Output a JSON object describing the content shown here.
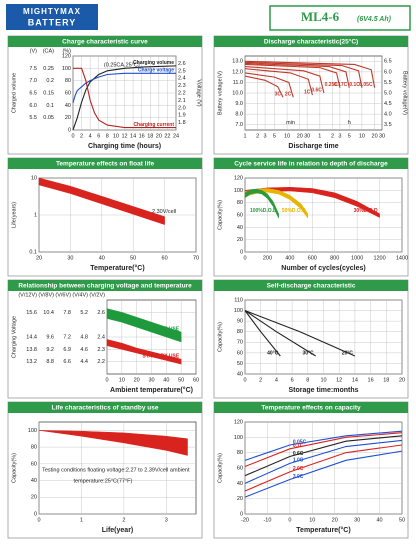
{
  "header": {
    "brand_line1": "MIGHTYMAX",
    "brand_line2": "BATTERY",
    "model": "ML4-6",
    "spec": "(6V4.5 Ah)"
  },
  "chart_data": [
    {
      "type": "line",
      "title": "Charge characteristic curve",
      "xlabel": "Charging time  (hours)",
      "ylabel": "Charged volume",
      "yunit": "(%)",
      "grid": true,
      "xlim": [
        0,
        24
      ],
      "xticks": [
        0,
        2,
        4,
        6,
        8,
        10,
        12,
        14,
        16,
        18,
        20,
        22,
        24
      ],
      "ylim": [
        0,
        120
      ],
      "yticks": [
        0,
        20,
        40,
        60,
        80,
        100,
        120
      ],
      "extra_axes": [
        {
          "label": "(CA)",
          "side": "left",
          "lim": [
            0,
            0.3
          ],
          "ticks": [
            0.05,
            0.1,
            0.15,
            0.2,
            0.25
          ]
        },
        {
          "label": "(V)",
          "side": "left",
          "lim": [
            5,
            8
          ],
          "ticks": [
            5.5,
            {
              "value": 6,
              "label": "6.0"
            },
            6.5,
            {
              "value": 7,
              "label": "7.0"
            },
            7.5
          ]
        },
        {
          "label": "Voltage (V)",
          "side": "right",
          "lim": [
            1.7,
            2.7
          ],
          "ticks": [
            1.8,
            1.9,
            {
              "value": 2,
              "label": "2.0"
            },
            2.1,
            2.2,
            2.3,
            2.4,
            2.5,
            2.6
          ]
        }
      ],
      "series": [
        {
          "name": "Charging volume",
          "color": "#222222",
          "x": [
            0,
            1,
            2,
            3,
            4,
            6,
            8,
            12,
            16,
            20,
            24
          ],
          "values": [
            0,
            20,
            45,
            65,
            78,
            90,
            96,
            100,
            102,
            103,
            104
          ]
        },
        {
          "name": "Charge voltage",
          "color": "#1f4fd0",
          "axis": 1,
          "x": [
            0,
            0.5,
            1,
            2,
            3,
            4,
            6,
            8,
            12,
            16,
            24
          ],
          "values": [
            6.1,
            6.4,
            6.6,
            6.75,
            6.9,
            7.0,
            7.15,
            7.25,
            7.3,
            7.3,
            7.3
          ]
        },
        {
          "name": "Charging current",
          "color": "#b5231f",
          "axis": 0,
          "x": [
            0,
            2,
            3,
            4,
            5,
            6,
            8,
            12,
            16,
            24
          ],
          "values": [
            0.25,
            0.25,
            0.2,
            0.12,
            0.07,
            0.04,
            0.02,
            0.01,
            0.01,
            0.01
          ]
        }
      ],
      "annotations": [
        "(0.25CA,25°C)"
      ]
    },
    {
      "type": "line",
      "title": "Discharge characteristic(25°C)",
      "xlabel": "Discharge time",
      "ylabel": "Battery voltage(V)",
      "grid": true,
      "xlog": true,
      "xlim": [
        1,
        1800
      ],
      "xticks": [
        1,
        2,
        3,
        5,
        10,
        20,
        30,
        {
          "value": 60,
          "label": "1"
        },
        {
          "value": 120,
          "label": "2"
        },
        {
          "value": 180,
          "label": "3"
        },
        {
          "value": 300,
          "label": "5"
        },
        {
          "value": 600,
          "label": "10"
        },
        {
          "value": 1200,
          "label": "20"
        },
        {
          "value": 1800,
          "label": "30"
        }
      ],
      "ylim": [
        6.5,
        13.5
      ],
      "yticks": [
        {
          "value": 7,
          "label": "7.0"
        },
        {
          "value": 8,
          "label": "8.0"
        },
        {
          "value": 9,
          "label": "9.0"
        },
        {
          "value": 10,
          "label": "10.0"
        },
        {
          "value": 11,
          "label": "11.0"
        },
        {
          "value": 12,
          "label": "12.0"
        },
        {
          "value": 13,
          "label": "13.0"
        }
      ],
      "extra_axes": [
        {
          "label": "Battery voltage(V)",
          "side": "right",
          "lim": [
            3.25,
            6.75
          ],
          "ticks": [
            3.5,
            {
              "value": 4,
              "label": "4.0"
            },
            4.5,
            {
              "value": 5,
              "label": "5.0"
            },
            5.5,
            {
              "value": 6,
              "label": "6.0"
            },
            6.5
          ]
        }
      ],
      "series": [
        {
          "name": "3C",
          "color": "#c0392b",
          "x": [
            1,
            3,
            6,
            8
          ],
          "values": [
            11.6,
            11.2,
            10.6,
            9.6
          ]
        },
        {
          "name": "2C",
          "color": "#c0392b",
          "x": [
            1,
            5,
            11,
            14
          ],
          "values": [
            11.9,
            11.5,
            11.0,
            9.6
          ]
        },
        {
          "name": "1C",
          "color": "#c0392b",
          "x": [
            1,
            12,
            32,
            40
          ],
          "values": [
            12.3,
            11.9,
            11.3,
            9.8
          ]
        },
        {
          "name": "0.6C",
          "color": "#c0392b",
          "x": [
            1,
            25,
            60,
            75
          ],
          "values": [
            12.5,
            12.1,
            11.6,
            10.0
          ]
        },
        {
          "name": "0.25C",
          "color": "#c0392b",
          "x": [
            1,
            60,
            150,
            180
          ],
          "values": [
            12.7,
            12.4,
            11.9,
            10.5
          ]
        },
        {
          "name": "0.17C",
          "color": "#c0392b",
          "x": [
            1,
            100,
            250,
            300
          ],
          "values": [
            12.8,
            12.5,
            12.0,
            10.5
          ]
        },
        {
          "name": "0.1C",
          "color": "#c0392b",
          "x": [
            1,
            200,
            500,
            600
          ],
          "values": [
            12.9,
            12.6,
            12.1,
            10.5
          ]
        },
        {
          "name": "0.05C",
          "color": "#c0392b",
          "x": [
            1,
            400,
            1000,
            1200
          ],
          "values": [
            13.0,
            12.7,
            12.2,
            10.5
          ]
        }
      ],
      "annotations": [
        "min",
        "h"
      ]
    },
    {
      "type": "band",
      "title": "Temperature effects on float life",
      "xlabel": "Temperature(°C)",
      "ylabel": "Life(years)",
      "grid": true,
      "ylog": true,
      "xlim": [
        20,
        70
      ],
      "xticks": [
        20,
        30,
        40,
        50,
        60,
        70
      ],
      "ylim": [
        0.1,
        10
      ],
      "yticks": [
        0.1,
        1,
        10
      ],
      "series": [
        {
          "color": "#d9231f",
          "x": [
            20,
            30,
            40,
            50,
            60
          ],
          "values": [
            10,
            6,
            3.2,
            1.7,
            0.9
          ],
          "low": [
            6.5,
            3.8,
            2,
            1.05,
            0.55
          ]
        }
      ],
      "annotations": [
        "2.30V/cell"
      ]
    },
    {
      "type": "band",
      "title": "Cycle service life in relation to depth of discharge",
      "xlabel": "Number of cycles(cycles)",
      "ylabel": "Capacity(%)",
      "grid": true,
      "xlim": [
        0,
        1400
      ],
      "xticks": [
        0,
        200,
        400,
        600,
        800,
        1000,
        1200,
        1400
      ],
      "ylim": [
        0,
        120
      ],
      "yticks": [
        0,
        20,
        40,
        60,
        80,
        100,
        120
      ],
      "series": [
        {
          "name": "30%D.O.D",
          "color": "#d9231f",
          "x": [
            0,
            200,
            400,
            600,
            800,
            1000,
            1200
          ],
          "values": [
            100,
            104,
            105,
            103,
            96,
            82,
            62
          ],
          "low": [
            92,
            98,
            99,
            96,
            88,
            74,
            56
          ]
        },
        {
          "name": "50%D.O.D",
          "color": "#e8b400",
          "x": [
            0,
            100,
            200,
            300,
            400,
            500,
            560
          ],
          "values": [
            98,
            102,
            103,
            100,
            92,
            78,
            62
          ],
          "low": [
            90,
            95,
            97,
            94,
            85,
            70,
            55
          ]
        },
        {
          "name": "100%D.O.D",
          "color": "#2a9a3a",
          "x": [
            0,
            50,
            100,
            150,
            200,
            250,
            300
          ],
          "values": [
            96,
            101,
            102,
            100,
            94,
            82,
            62
          ],
          "low": [
            88,
            94,
            96,
            94,
            87,
            74,
            55
          ]
        }
      ]
    },
    {
      "type": "band",
      "title": "Relationship between charging voltage and temperature",
      "xlabel": "Ambient temperature(°C)",
      "ylabel": "Charging Voltage",
      "yunit": "(V/2V)",
      "grid": true,
      "xlim": [
        0,
        60
      ],
      "xticks": [
        0,
        10,
        20,
        30,
        40,
        50,
        60
      ],
      "ylim": [
        2.1,
        2.7
      ],
      "yticks": [
        2.2,
        2.3,
        2.4,
        2.6
      ],
      "extra_axes": [
        {
          "label": "(V/4V)",
          "side": "left",
          "lim": [
            4.2,
            5.4
          ],
          "ticks": [
            4.4,
            4.6,
            4.8,
            5.2
          ]
        },
        {
          "label": "(V/6V)",
          "side": "left",
          "lim": [
            6.3,
            8.1
          ],
          "ticks": [
            6.6,
            6.9,
            7.2,
            7.8
          ]
        },
        {
          "label": "(V/8V)",
          "side": "left",
          "lim": [
            8.4,
            10.8
          ],
          "ticks": [
            8.8,
            9.2,
            9.6,
            10.4
          ]
        },
        {
          "label": "(V/12V)",
          "side": "left",
          "lim": [
            12.6,
            16.2
          ],
          "ticks": [
            13.2,
            13.8,
            14.4,
            15.6
          ]
        }
      ],
      "series": [
        {
          "name": "CYCLE USE",
          "color": "#1e9a3c",
          "x": [
            0,
            10,
            20,
            30,
            40,
            50
          ],
          "values": [
            2.63,
            2.6,
            2.56,
            2.52,
            2.48,
            2.44
          ],
          "low": [
            2.55,
            2.52,
            2.48,
            2.44,
            2.4,
            2.36
          ]
        },
        {
          "name": "STAND BY USE",
          "color": "#d9231f",
          "x": [
            0,
            10,
            20,
            30,
            40,
            50
          ],
          "values": [
            2.38,
            2.35,
            2.31,
            2.28,
            2.25,
            2.22
          ],
          "low": [
            2.33,
            2.3,
            2.27,
            2.24,
            2.21,
            2.18
          ]
        }
      ]
    },
    {
      "type": "line",
      "title": "Self-discharge characteristic",
      "xlabel": "Storage time:months",
      "ylabel": "Capacity(%)",
      "grid": true,
      "xlim": [
        0,
        20
      ],
      "xticks": [
        0,
        2,
        4,
        6,
        8,
        10,
        12,
        14,
        16,
        18,
        20
      ],
      "ylim": [
        40,
        110
      ],
      "yticks": [
        40,
        50,
        60,
        70,
        80,
        90,
        100,
        110
      ],
      "series": [
        {
          "name": "40°C",
          "color": "#222222",
          "x": [
            0,
            2,
            4.5
          ],
          "values": [
            100,
            80,
            57
          ]
        },
        {
          "name": "30°C",
          "color": "#222222",
          "x": [
            0,
            4,
            9
          ],
          "values": [
            100,
            80,
            57
          ]
        },
        {
          "name": "20°C",
          "color": "#222222",
          "x": [
            0,
            7,
            14
          ],
          "values": [
            100,
            80,
            57
          ]
        }
      ]
    },
    {
      "type": "band",
      "title": "Life characteristics of standby use",
      "xlabel": "Life(year)",
      "ylabel": "Capacity(%)",
      "grid": true,
      "xlim": [
        0,
        3.7
      ],
      "xticks": [
        0,
        1,
        2,
        3
      ],
      "ylim": [
        0,
        110
      ],
      "yticks": [
        0,
        20,
        40,
        60,
        80,
        100
      ],
      "series": [
        {
          "color": "#d9231f",
          "x": [
            0,
            1,
            2,
            3,
            3.5
          ],
          "values": [
            100,
            99,
            97,
            93,
            90
          ],
          "low": [
            100,
            93,
            85,
            76,
            70
          ]
        }
      ],
      "annotations": [
        "Testing conditions floating voltage:2.27 to 2.39V/cell ambient",
        "temperature:25°C(77°F)"
      ]
    },
    {
      "type": "line",
      "title": "Temperature effects on capacity",
      "xlabel": "Temperature(°C)",
      "ylabel": "Capacity(%)",
      "grid": true,
      "xlim": [
        -20,
        50
      ],
      "xticks": [
        -20,
        -10,
        0,
        10,
        20,
        30,
        40,
        50
      ],
      "ylim": [
        0,
        120
      ],
      "yticks": [
        0,
        20,
        40,
        60,
        80,
        100,
        120
      ],
      "series": [
        {
          "name": "0.05C",
          "color": "#1f4fd0",
          "x": [
            -20,
            0,
            25,
            50
          ],
          "values": [
            70,
            90,
            102,
            108
          ]
        },
        {
          "name": "0.1C",
          "color": "#d9231f",
          "x": [
            -20,
            0,
            25,
            50
          ],
          "values": [
            62,
            85,
            100,
            106
          ]
        },
        {
          "name": "0.6C",
          "color": "#222222",
          "x": [
            -20,
            0,
            25,
            50
          ],
          "values": [
            50,
            75,
            95,
            102
          ]
        },
        {
          "name": "1.0C",
          "color": "#1f4fd0",
          "x": [
            -20,
            0,
            25,
            50
          ],
          "values": [
            40,
            66,
            88,
            96
          ]
        },
        {
          "name": "2.0C",
          "color": "#d9231f",
          "x": [
            -20,
            0,
            25,
            50
          ],
          "values": [
            30,
            55,
            80,
            90
          ]
        },
        {
          "name": "3.0C",
          "color": "#1f4fd0",
          "x": [
            -20,
            0,
            25,
            50
          ],
          "values": [
            22,
            45,
            70,
            82
          ]
        }
      ]
    }
  ]
}
